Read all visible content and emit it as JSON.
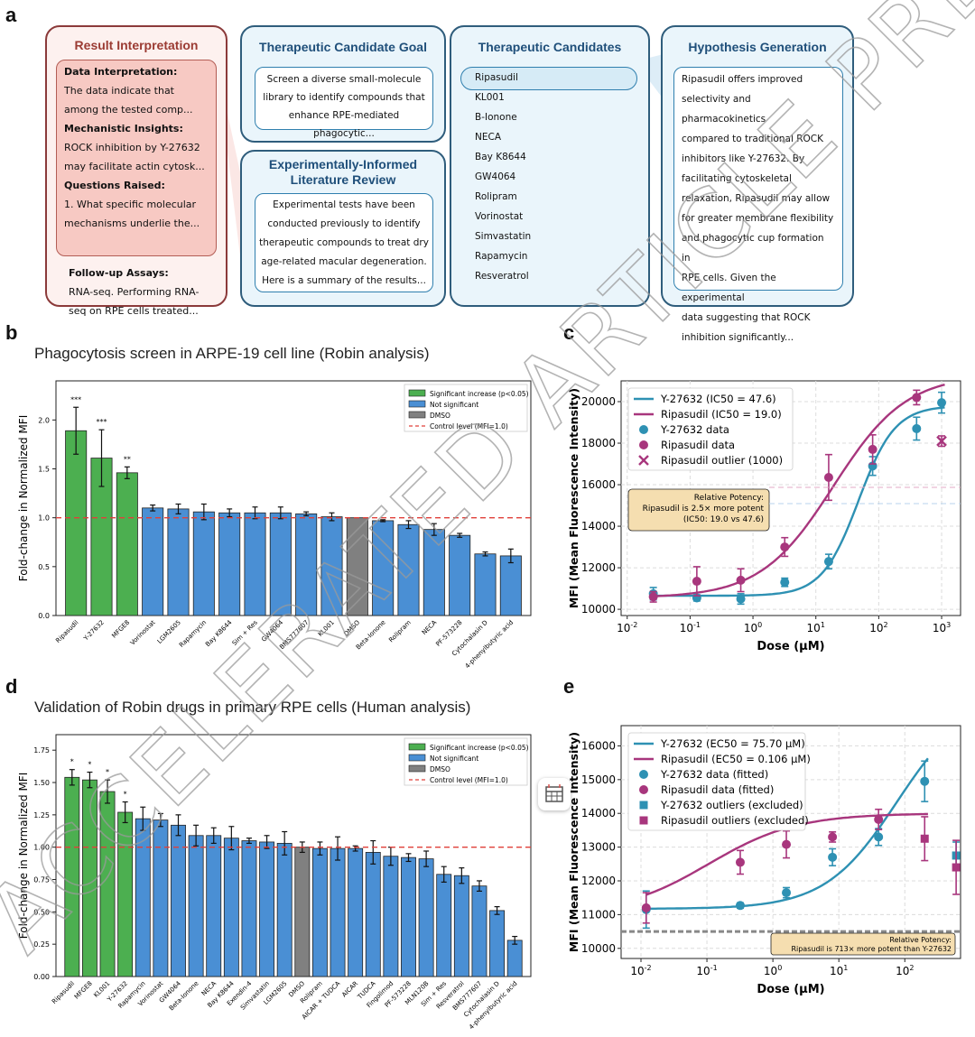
{
  "panel_labels": {
    "a": "a",
    "b": "b",
    "c": "c",
    "d": "d",
    "e": "e"
  },
  "watermark": "ACCELERATED ARTICLE PREVIEW",
  "result_interpretation": {
    "title": "Result Interpretation",
    "data_interp_label": "Data Interpretation:",
    "data_interp_text": [
      "The data indicate that",
      "among the tested comp..."
    ],
    "mech_label": "Mechanistic Insights:",
    "mech_text": [
      "ROCK inhibition by Y-27632",
      "may facilitate actin cytosk..."
    ],
    "questions_label": "Questions Raised:",
    "questions_text": [
      "1. What specific molecular",
      "mechanisms underlie the..."
    ],
    "followup_label": "Follow-up Assays:",
    "followup_text": [
      "RNA-seq. Performing RNA-",
      "seq on RPE cells treated..."
    ]
  },
  "goal": {
    "title": "Therapeutic Candidate Goal",
    "text": [
      "Screen a diverse small-molecule",
      "library to identify compounds that",
      "enhance RPE-mediated phagocytic..."
    ]
  },
  "lit_review": {
    "title": [
      "Experimentally-Informed",
      "Literature Review"
    ],
    "text": [
      "Experimental tests have been",
      "conducted previously to identify",
      "therapeutic compounds to treat dry",
      "age-related macular degeneration.",
      "Here is a summary of the results..."
    ]
  },
  "candidates": {
    "title": "Therapeutic Candidates",
    "items": [
      "Ripasudil",
      "KL001",
      "B-Ionone",
      "NECA",
      "Bay K8644",
      "GW4064",
      "Rolipram",
      "Vorinostat",
      "Simvastatin",
      "Rapamycin",
      "Resveratrol"
    ]
  },
  "hypothesis": {
    "title": "Hypothesis Generation",
    "text": [
      "Ripasudil offers improved",
      "selectivity and pharmacokinetics",
      "compared to traditional ROCK",
      "inhibitors like Y-27632. By",
      "facilitating cytoskeletal",
      "relaxation, Ripasudil may allow",
      "for greater membrane flexibility",
      "and phagocytic cup formation in",
      "RPE cells. Given the experimental",
      "data suggesting that ROCK",
      "inhibition significantly..."
    ]
  },
  "colors": {
    "green": "#4caf50",
    "blue": "#4a8fd4",
    "gray": "#808080",
    "teal": "#2e91b3",
    "magenta": "#a8367d",
    "red": "#e0403a",
    "navy": "#1f4f7a"
  },
  "chart_data": [
    {
      "id": "b",
      "type": "bar",
      "title": "Phagocytosis screen in ARPE-19 cell line (Robin analysis)",
      "ylabel": "Fold-change in Normalized MFI",
      "ylim": [
        0,
        2.4
      ],
      "yticks": [
        "0.0",
        "0.5",
        "1.0",
        "1.5",
        "2.0"
      ],
      "ytick_values": [
        0,
        0.5,
        1.0,
        1.5,
        2.0
      ],
      "control_level": 1.0,
      "categories": [
        "Ripasudil",
        "Y-27632",
        "MFGE8",
        "Vorinostat",
        "LGM2605",
        "Rapamycin",
        "Bay K8644",
        "Sim + Res",
        "GW4064",
        "BMS777607",
        "KL001",
        "DMSO",
        "Beta-Ionone",
        "Rolipram",
        "NECA",
        "PF-573228",
        "Cytochalasin D",
        "4-phenylbutyric acid"
      ],
      "values": [
        1.89,
        1.61,
        1.46,
        1.1,
        1.09,
        1.06,
        1.05,
        1.05,
        1.05,
        1.04,
        1.01,
        1.0,
        0.97,
        0.93,
        0.88,
        0.82,
        0.63,
        0.61
      ],
      "errors": [
        0.24,
        0.29,
        0.06,
        0.03,
        0.05,
        0.08,
        0.04,
        0.06,
        0.06,
        0.02,
        0.04,
        0.0,
        0.01,
        0.04,
        0.06,
        0.02,
        0.02,
        0.07
      ],
      "groups": [
        "sig",
        "sig",
        "sig",
        "ns",
        "ns",
        "ns",
        "ns",
        "ns",
        "ns",
        "ns",
        "ns",
        "dmso",
        "ns",
        "ns",
        "ns",
        "ns",
        "ns",
        "ns"
      ],
      "stars": [
        "***",
        "***",
        "**",
        "",
        "",
        "",
        "",
        "",
        "",
        "",
        "",
        "",
        "",
        "",
        "",
        "",
        "",
        ""
      ],
      "legend": [
        "Significant increase (p<0.05)",
        "Not significant",
        "DMSO",
        "Control level (MFI=1.0)"
      ]
    },
    {
      "id": "c",
      "type": "scatter",
      "xlabel": "Dose (µM)",
      "ylabel": "MFI (Mean Fluorescence Intensity)",
      "xscale": "log",
      "xlim": [
        0.008,
        2000
      ],
      "ylim": [
        9700,
        21000
      ],
      "yticks": [
        10000,
        12000,
        14000,
        16000,
        18000,
        20000
      ],
      "xtick_exponents": [
        -2,
        -1,
        0,
        1,
        2,
        3
      ],
      "series": [
        {
          "name": "Y-27632 (IC50 = 47.6)",
          "kind": "fit",
          "bottom": 10650,
          "top": 19800,
          "ec50": 47.6,
          "hill": 1.5
        },
        {
          "name": "Ripasudil (IC50 = 19.0)",
          "kind": "fit",
          "bottom": 10550,
          "top": 21300,
          "ec50": 19.0,
          "hill": 0.75
        },
        {
          "name": "Y-27632 data",
          "kind": "data",
          "x": [
            0.026,
            0.128,
            0.64,
            3.2,
            16,
            80,
            400,
            1000
          ],
          "y": [
            10750,
            10550,
            10500,
            11300,
            12300,
            16900,
            18700,
            19950
          ],
          "err": [
            300,
            150,
            250,
            200,
            350,
            450,
            550,
            500
          ]
        },
        {
          "name": "Ripasudil data",
          "kind": "data",
          "x": [
            0.026,
            0.128,
            0.64,
            3.2,
            16,
            80,
            400
          ],
          "y": [
            10600,
            11350,
            11400,
            13000,
            16350,
            17700,
            20200
          ],
          "err": [
            250,
            700,
            550,
            450,
            1100,
            700,
            350
          ]
        },
        {
          "name": "Ripasudil outlier (1000)",
          "kind": "outlier",
          "x": [
            1000
          ],
          "y": [
            18100
          ],
          "err": [
            250
          ]
        }
      ],
      "annotation": [
        "Relative Potency:",
        "Ripasudil is 2.5× more potent",
        "(IC50: 19.0 vs 47.6)"
      ]
    },
    {
      "id": "d",
      "type": "bar",
      "title": "Validation of Robin drugs in primary RPE cells (Human analysis)",
      "ylabel": "Fold-change in Normalized MFI",
      "ylim": [
        0,
        1.87
      ],
      "yticks": [
        "0.00",
        "0.25",
        "0.50",
        "0.75",
        "1.00",
        "1.25",
        "1.50",
        "1.75"
      ],
      "ytick_values": [
        0,
        0.25,
        0.5,
        0.75,
        1.0,
        1.25,
        1.5,
        1.75
      ],
      "control_level": 1.0,
      "categories": [
        "Ripasudil",
        "MFGE8",
        "KL001",
        "Y-27632",
        "Rapamycin",
        "Vorinostat",
        "GW4064",
        "Beta-Ionone",
        "NECA",
        "Bay K8644",
        "Exendin-4",
        "Simvastatin",
        "LGM2605",
        "DMSO",
        "Rolipram",
        "AICAR + TUDCA",
        "AICAR",
        "TUDCA",
        "Fingolimod",
        "PF-573228",
        "MLN120B",
        "Sim + Res",
        "Resveratrol",
        "BMS777607",
        "Cytochalasin D",
        "4-phenylbutyric acid"
      ],
      "values": [
        1.54,
        1.52,
        1.43,
        1.27,
        1.22,
        1.21,
        1.17,
        1.09,
        1.09,
        1.07,
        1.05,
        1.04,
        1.03,
        1.0,
        0.99,
        0.99,
        0.99,
        0.96,
        0.93,
        0.92,
        0.91,
        0.79,
        0.78,
        0.7,
        0.51,
        0.28
      ],
      "errors": [
        0.06,
        0.06,
        0.09,
        0.08,
        0.09,
        0.05,
        0.08,
        0.08,
        0.06,
        0.09,
        0.02,
        0.05,
        0.09,
        0.04,
        0.05,
        0.09,
        0.02,
        0.09,
        0.07,
        0.03,
        0.06,
        0.06,
        0.06,
        0.04,
        0.03,
        0.03
      ],
      "groups": [
        "sig",
        "sig",
        "sig",
        "sig",
        "ns",
        "ns",
        "ns",
        "ns",
        "ns",
        "ns",
        "ns",
        "ns",
        "ns",
        "dmso",
        "ns",
        "ns",
        "ns",
        "ns",
        "ns",
        "ns",
        "ns",
        "ns",
        "ns",
        "ns",
        "ns",
        "ns"
      ],
      "stars": [
        "*",
        "*",
        "*",
        "*",
        "",
        "",
        "",
        "",
        "",
        "",
        "",
        "",
        "",
        "",
        "",
        "",
        "",
        "",
        "",
        "",
        "",
        "",
        "",
        "",
        "",
        ""
      ],
      "legend": [
        "Significant increase (p<0.05)",
        "Not significant",
        "DMSO",
        "Control level (MFI=1.0)"
      ]
    },
    {
      "id": "e",
      "type": "scatter",
      "xlabel": "Dose (µM)",
      "ylabel": "MFI (Mean Fluorescence Intensity)",
      "xscale": "log",
      "xlim": [
        0.005,
        700
      ],
      "ylim": [
        9700,
        16600
      ],
      "yticks": [
        10000,
        11000,
        12000,
        13000,
        14000,
        15000,
        16000
      ],
      "xtick_exponents": [
        -2,
        -1,
        0,
        1,
        2
      ],
      "baseline": 10500,
      "series": [
        {
          "name": "Y-27632 (EC50 = 75.70 µM)",
          "kind": "fit",
          "bottom": 11170,
          "top": 17500,
          "ec50": 75.7,
          "hill": 0.8
        },
        {
          "name": "Ripasudil (EC50 = 0.106 µM)",
          "kind": "fit",
          "bottom": 11000,
          "top": 14000,
          "ec50": 0.106,
          "hill": 0.65
        },
        {
          "name": "Y-27632 data (fitted)",
          "kind": "data",
          "x": [
            0.012,
            0.32,
            1.6,
            8,
            40,
            200
          ],
          "y": [
            11150,
            11270,
            11650,
            12700,
            13300,
            14950
          ],
          "err": [
            550,
            80,
            150,
            250,
            250,
            600
          ]
        },
        {
          "name": "Ripasudil data (fitted)",
          "kind": "data",
          "x": [
            0.012,
            0.32,
            1.6,
            8,
            40
          ],
          "y": [
            11200,
            12550,
            13080,
            13300,
            13820
          ],
          "err": [
            450,
            350,
            400,
            150,
            300
          ]
        },
        {
          "name": "Y-27632 outliers (excluded)",
          "kind": "outlier_sq",
          "x": [
            600
          ],
          "y": [
            12750
          ],
          "err": [
            400
          ]
        },
        {
          "name": "Ripasudil outliers (excluded)",
          "kind": "outlier_sq",
          "x": [
            200,
            600
          ],
          "y": [
            13250,
            12400
          ],
          "err": [
            650,
            800
          ]
        }
      ],
      "annotation": [
        "Relative Potency:",
        "Ripasudil is 713× more potent than Y-27632"
      ]
    }
  ]
}
